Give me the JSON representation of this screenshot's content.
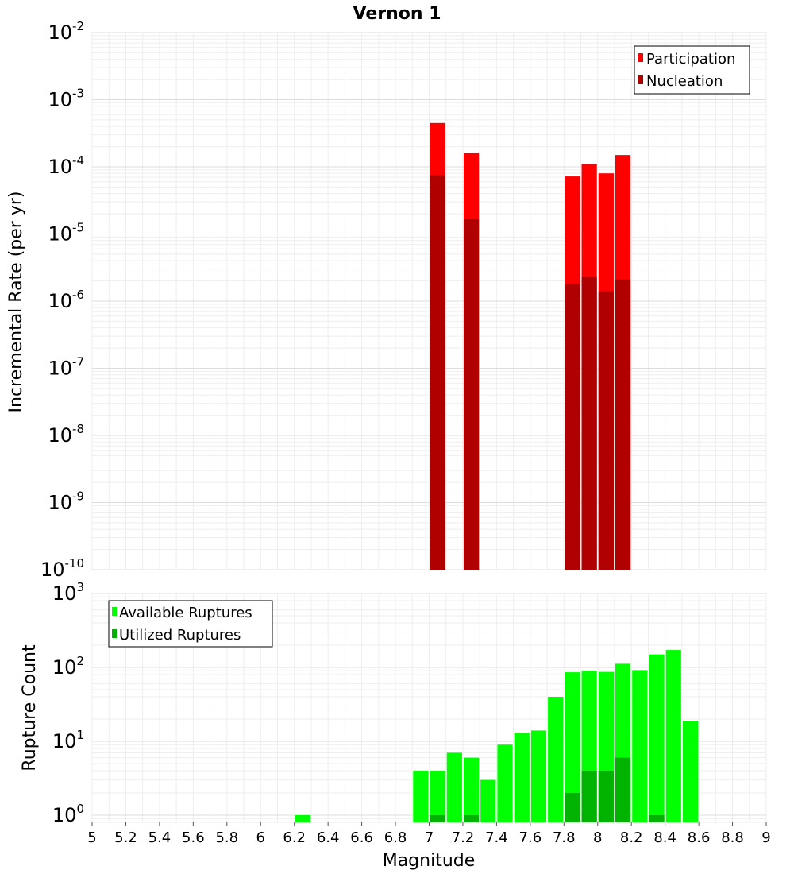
{
  "chart_data": [
    {
      "type": "bar",
      "panel": "top",
      "title": "Vernon 1",
      "ylabel": "Incremental Rate (per yr)",
      "xlabel": "",
      "yscale": "log",
      "ylim": [
        1e-10,
        0.01
      ],
      "xlim": [
        5,
        9
      ],
      "y_tick_labels": [
        {
          "base": "10",
          "exp": "-2"
        },
        {
          "base": "10",
          "exp": "-3"
        },
        {
          "base": "10",
          "exp": "-4"
        },
        {
          "base": "10",
          "exp": "-5"
        },
        {
          "base": "10",
          "exp": "-6"
        },
        {
          "base": "10",
          "exp": "-7"
        },
        {
          "base": "10",
          "exp": "-8"
        },
        {
          "base": "10",
          "exp": "-9"
        },
        {
          "base": "10",
          "exp": "-10"
        }
      ],
      "bin_width": 0.1,
      "legend": {
        "placement": "top-right",
        "entries": [
          "Participation",
          "Nucleation"
        ]
      },
      "series": [
        {
          "name": "Participation",
          "color": "#ff0000",
          "x": [
            7.05,
            7.25,
            7.85,
            7.95,
            8.05,
            8.15
          ],
          "values": [
            0.00045,
            0.00016,
            7.2e-05,
            0.00011,
            8e-05,
            0.00015
          ]
        },
        {
          "name": "Nucleation",
          "color": "#b00000",
          "x": [
            7.05,
            7.25,
            7.85,
            7.95,
            8.05,
            8.15
          ],
          "values": [
            7.5e-05,
            1.7e-05,
            1.8e-06,
            2.3e-06,
            1.4e-06,
            2.1e-06
          ]
        }
      ]
    },
    {
      "type": "bar",
      "panel": "bottom",
      "title": "",
      "ylabel": "Rupture Count",
      "xlabel": "Magnitude",
      "yscale": "log",
      "ylim": [
        0.8,
        1000
      ],
      "xlim": [
        5,
        9
      ],
      "y_tick_labels": [
        {
          "base": "10",
          "exp": "3",
          "value": 1000
        },
        {
          "base": "10",
          "exp": "2",
          "value": 100
        },
        {
          "base": "10",
          "exp": "1",
          "value": 10
        },
        {
          "base": "10",
          "exp": "0",
          "value": 1
        }
      ],
      "x_tick_labels": [
        "5",
        "5.2",
        "5.4",
        "5.6",
        "5.8",
        "6",
        "6.2",
        "6.4",
        "6.6",
        "6.8",
        "7",
        "7.2",
        "7.4",
        "7.6",
        "7.8",
        "8",
        "8.2",
        "8.4",
        "8.6",
        "8.8",
        "9"
      ],
      "bin_width": 0.1,
      "legend": {
        "placement": "top-left",
        "entries": [
          "Available Ruptures",
          "Utilized Ruptures"
        ]
      },
      "series": [
        {
          "name": "Available Ruptures",
          "color": "#00ff00",
          "x": [
            6.25,
            6.95,
            7.05,
            7.15,
            7.25,
            7.35,
            7.45,
            7.55,
            7.65,
            7.75,
            7.85,
            7.95,
            8.05,
            8.15,
            8.25,
            8.35,
            8.45,
            8.55
          ],
          "values": [
            1,
            4,
            4,
            7,
            6,
            3,
            9,
            13,
            14,
            40,
            86,
            90,
            87,
            112,
            92,
            150,
            172,
            19
          ]
        },
        {
          "name": "Utilized Ruptures",
          "color": "#00b300",
          "x": [
            7.05,
            7.25,
            7.85,
            7.95,
            8.05,
            8.15,
            8.35
          ],
          "values": [
            1,
            1,
            2,
            4,
            4,
            6,
            1
          ]
        }
      ]
    }
  ]
}
